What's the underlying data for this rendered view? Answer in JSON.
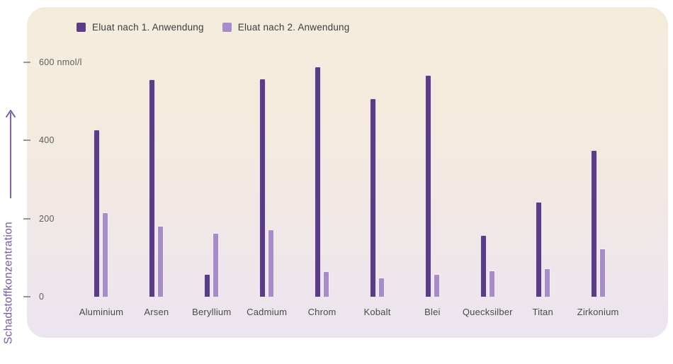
{
  "colors": {
    "series1": "#5b3c86",
    "series2": "#a88bc9",
    "axis_text": "#4a4a4a",
    "tick_text": "#5f5d5a",
    "y_title": "#7a5aa8",
    "panel_top": "#f4ecdb",
    "panel_bottom": "#ece4f0",
    "page_background": "#ffffff"
  },
  "chart_data": {
    "type": "bar",
    "title": "",
    "categories": [
      "Aluminium",
      "Arsen",
      "Beryllium",
      "Cadmium",
      "Chrom",
      "Kobalt",
      "Blei",
      "Quecksilber",
      "Titan",
      "Zirkonium"
    ],
    "series": [
      {
        "name": "Eluat nach 1. Anwendung",
        "color": "#5b3c86",
        "values": [
          428,
          556,
          58,
          558,
          590,
          507,
          568,
          158,
          242,
          375
        ]
      },
      {
        "name": "Eluat nach 2. Anwendung",
        "color": "#a88bc9",
        "values": [
          216,
          181,
          163,
          172,
          65,
          49,
          58,
          67,
          72,
          124
        ]
      }
    ],
    "xlabel": "",
    "ylabel": "Schadstoffkonzentration",
    "y_unit": "nmol/l",
    "ylim": [
      0,
      600
    ],
    "y_ticks": [
      0,
      200,
      400,
      600
    ],
    "y_tick_labels": [
      "0",
      "200",
      "400",
      "600 nmol/l"
    ],
    "grid": false,
    "legend_position": "top-left"
  }
}
